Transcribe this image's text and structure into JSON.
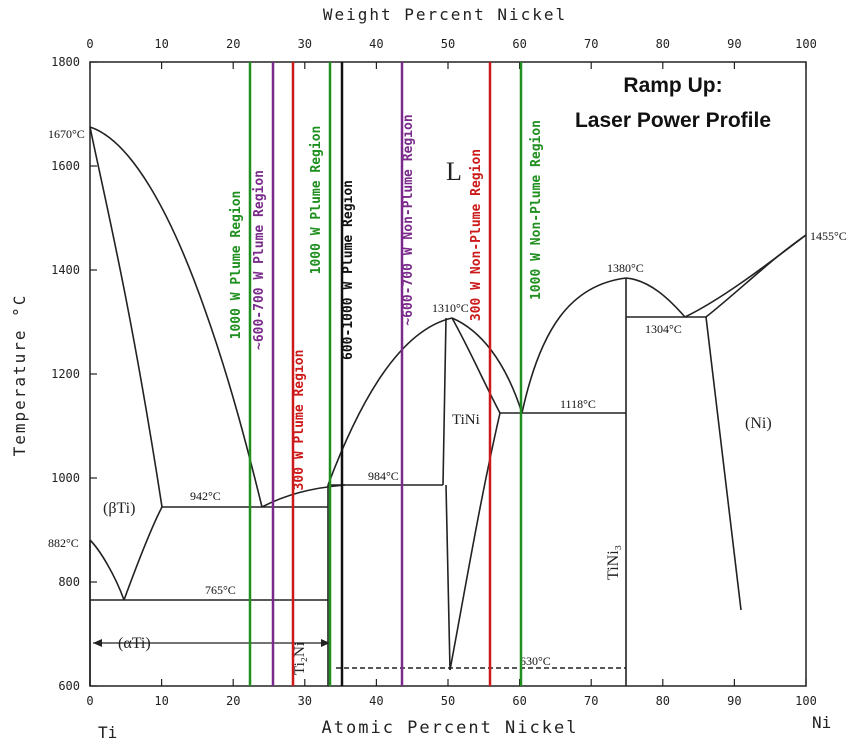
{
  "diagram": {
    "top_axis_title": "Weight Percent Nickel",
    "bottom_axis_title": "Atomic Percent Nickel",
    "left_axis_title": "Temperature °C",
    "end_label_left": "Ti",
    "end_label_right": "Ni",
    "title_line1": "Ramp Up:",
    "title_line2": "Laser Power Profile",
    "top_ticks": [
      "0",
      "10",
      "20",
      "30",
      "40",
      "50",
      "60",
      "70",
      "80",
      "90",
      "100"
    ],
    "bottom_ticks": [
      "0",
      "10",
      "20",
      "30",
      "40",
      "50",
      "60",
      "70",
      "80",
      "90",
      "100"
    ],
    "left_ticks": [
      "1800",
      "1600",
      "1400",
      "1200",
      "1000",
      "800",
      "600"
    ],
    "phase_labels": {
      "liquid": "L",
      "beta_ti": "(βTi)",
      "alpha_ti": "(αTi)",
      "ti2ni": "Ti₂Ni",
      "tini": "TiNi",
      "tini3": "TiNi₃",
      "ni": "(Ni)"
    },
    "temp_labels": {
      "t1670": "1670°C",
      "t882": "882°C",
      "t942": "942°C",
      "t765": "765°C",
      "t984": "984°C",
      "t1310": "1310°C",
      "t1118": "1118°C",
      "t1380": "1380°C",
      "t1304": "1304°C",
      "t1455": "1455°C",
      "t630": "630°C"
    },
    "regions": [
      {
        "label": "1000 W Plume Region",
        "color": "#1f8f1f"
      },
      {
        "label": "~600-700 W Plume Region",
        "color": "#7a2a8a"
      },
      {
        "label": "300 W Plume Region",
        "color": "#cc1a1a"
      },
      {
        "label": "1000 W Plume Region",
        "color": "#1f8f1f"
      },
      {
        "label": "600-1000 W Plume Region",
        "color": "#111111"
      },
      {
        "label": "~600-700 W Non-Plume Region",
        "color": "#7a2a8a"
      },
      {
        "label": "300 W Non-Plume Region",
        "color": "#cc1a1a"
      },
      {
        "label": "1000 W Non-Plume Region",
        "color": "#1f8f1f"
      }
    ]
  }
}
